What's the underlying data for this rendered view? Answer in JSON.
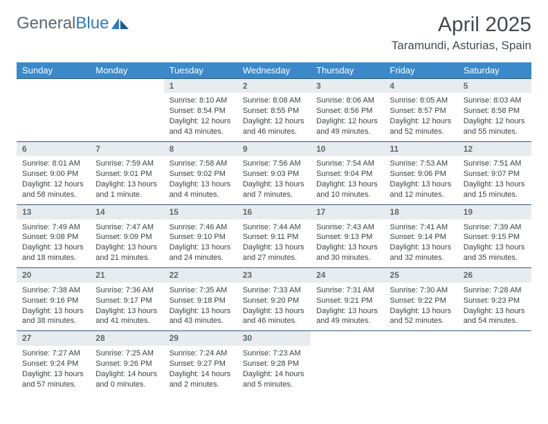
{
  "branding": {
    "name_part1": "General",
    "name_part2": "Blue",
    "text_color": "#5a6770",
    "accent_color": "#2f7ac0"
  },
  "title": "April 2025",
  "location": "Taramundi, Asturias, Spain",
  "header_bg": "#3b89c9",
  "header_text_color": "#ffffff",
  "daynum_bg": "#e9ecef",
  "border_color": "#2f5a7a",
  "content_text_color": "#3a3f44",
  "day_headers": [
    "Sunday",
    "Monday",
    "Tuesday",
    "Wednesday",
    "Thursday",
    "Friday",
    "Saturday"
  ],
  "weeks": [
    [
      {
        "empty": true
      },
      {
        "empty": true
      },
      {
        "n": "1",
        "sunrise": "8:10 AM",
        "sunset": "8:54 PM",
        "daylight": "12 hours and 43 minutes."
      },
      {
        "n": "2",
        "sunrise": "8:08 AM",
        "sunset": "8:55 PM",
        "daylight": "12 hours and 46 minutes."
      },
      {
        "n": "3",
        "sunrise": "8:06 AM",
        "sunset": "8:56 PM",
        "daylight": "12 hours and 49 minutes."
      },
      {
        "n": "4",
        "sunrise": "8:05 AM",
        "sunset": "8:57 PM",
        "daylight": "12 hours and 52 minutes."
      },
      {
        "n": "5",
        "sunrise": "8:03 AM",
        "sunset": "8:58 PM",
        "daylight": "12 hours and 55 minutes."
      }
    ],
    [
      {
        "n": "6",
        "sunrise": "8:01 AM",
        "sunset": "9:00 PM",
        "daylight": "12 hours and 58 minutes."
      },
      {
        "n": "7",
        "sunrise": "7:59 AM",
        "sunset": "9:01 PM",
        "daylight": "13 hours and 1 minute."
      },
      {
        "n": "8",
        "sunrise": "7:58 AM",
        "sunset": "9:02 PM",
        "daylight": "13 hours and 4 minutes."
      },
      {
        "n": "9",
        "sunrise": "7:56 AM",
        "sunset": "9:03 PM",
        "daylight": "13 hours and 7 minutes."
      },
      {
        "n": "10",
        "sunrise": "7:54 AM",
        "sunset": "9:04 PM",
        "daylight": "13 hours and 10 minutes."
      },
      {
        "n": "11",
        "sunrise": "7:53 AM",
        "sunset": "9:06 PM",
        "daylight": "13 hours and 12 minutes."
      },
      {
        "n": "12",
        "sunrise": "7:51 AM",
        "sunset": "9:07 PM",
        "daylight": "13 hours and 15 minutes."
      }
    ],
    [
      {
        "n": "13",
        "sunrise": "7:49 AM",
        "sunset": "9:08 PM",
        "daylight": "13 hours and 18 minutes."
      },
      {
        "n": "14",
        "sunrise": "7:47 AM",
        "sunset": "9:09 PM",
        "daylight": "13 hours and 21 minutes."
      },
      {
        "n": "15",
        "sunrise": "7:46 AM",
        "sunset": "9:10 PM",
        "daylight": "13 hours and 24 minutes."
      },
      {
        "n": "16",
        "sunrise": "7:44 AM",
        "sunset": "9:11 PM",
        "daylight": "13 hours and 27 minutes."
      },
      {
        "n": "17",
        "sunrise": "7:43 AM",
        "sunset": "9:13 PM",
        "daylight": "13 hours and 30 minutes."
      },
      {
        "n": "18",
        "sunrise": "7:41 AM",
        "sunset": "9:14 PM",
        "daylight": "13 hours and 32 minutes."
      },
      {
        "n": "19",
        "sunrise": "7:39 AM",
        "sunset": "9:15 PM",
        "daylight": "13 hours and 35 minutes."
      }
    ],
    [
      {
        "n": "20",
        "sunrise": "7:38 AM",
        "sunset": "9:16 PM",
        "daylight": "13 hours and 38 minutes."
      },
      {
        "n": "21",
        "sunrise": "7:36 AM",
        "sunset": "9:17 PM",
        "daylight": "13 hours and 41 minutes."
      },
      {
        "n": "22",
        "sunrise": "7:35 AM",
        "sunset": "9:18 PM",
        "daylight": "13 hours and 43 minutes."
      },
      {
        "n": "23",
        "sunrise": "7:33 AM",
        "sunset": "9:20 PM",
        "daylight": "13 hours and 46 minutes."
      },
      {
        "n": "24",
        "sunrise": "7:31 AM",
        "sunset": "9:21 PM",
        "daylight": "13 hours and 49 minutes."
      },
      {
        "n": "25",
        "sunrise": "7:30 AM",
        "sunset": "9:22 PM",
        "daylight": "13 hours and 52 minutes."
      },
      {
        "n": "26",
        "sunrise": "7:28 AM",
        "sunset": "9:23 PM",
        "daylight": "13 hours and 54 minutes."
      }
    ],
    [
      {
        "n": "27",
        "sunrise": "7:27 AM",
        "sunset": "9:24 PM",
        "daylight": "13 hours and 57 minutes."
      },
      {
        "n": "28",
        "sunrise": "7:25 AM",
        "sunset": "9:26 PM",
        "daylight": "14 hours and 0 minutes."
      },
      {
        "n": "29",
        "sunrise": "7:24 AM",
        "sunset": "9:27 PM",
        "daylight": "14 hours and 2 minutes."
      },
      {
        "n": "30",
        "sunrise": "7:23 AM",
        "sunset": "9:28 PM",
        "daylight": "14 hours and 5 minutes."
      },
      {
        "empty": true
      },
      {
        "empty": true
      },
      {
        "empty": true
      }
    ]
  ]
}
